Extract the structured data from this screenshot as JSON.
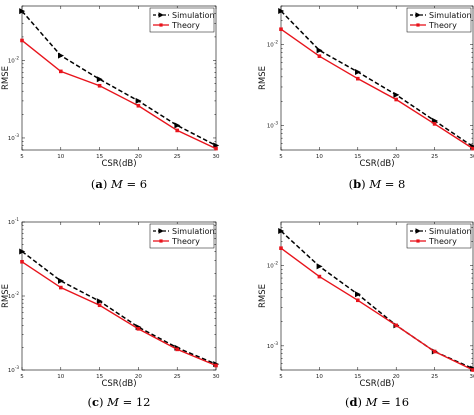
{
  "figure": {
    "panels_count": 4
  },
  "chart_data": [
    {
      "type": "line",
      "panel_label": "a",
      "caption_param": "M",
      "caption_value": "6",
      "xlabel": "CSR(dB)",
      "ylabel": "RMSE",
      "x_scale": "linear",
      "y_scale": "log",
      "xlim": [
        5,
        30
      ],
      "ylim": [
        0.0007,
        0.05
      ],
      "x": [
        5,
        10,
        15,
        20,
        25,
        30
      ],
      "x_tick_labels": [
        "5",
        "10",
        "15",
        "20",
        "25",
        "30"
      ],
      "y_tick_labels": [
        {
          "value": 0.01,
          "base": "10",
          "exp": "-2"
        },
        {
          "value": 0.001,
          "base": "10",
          "exp": "-3"
        }
      ],
      "grid": false,
      "legend_position": "top-right",
      "series": [
        {
          "name": "Simulation",
          "values": [
            0.043,
            0.0115,
            0.0057,
            0.003,
            0.00145,
            0.0008
          ],
          "color": "#000000",
          "style": "dashed",
          "marker": "triangle-right"
        },
        {
          "name": "Theory",
          "values": [
            0.018,
            0.0072,
            0.0047,
            0.0026,
            0.00125,
            0.00073
          ],
          "color": "#e8141c",
          "style": "solid",
          "marker": "square"
        }
      ]
    },
    {
      "type": "line",
      "panel_label": "b",
      "caption_param": "M",
      "caption_value": "8",
      "xlabel": "CSR(dB)",
      "ylabel": "RMSE",
      "x_scale": "linear",
      "y_scale": "log",
      "xlim": [
        5,
        30
      ],
      "ylim": [
        0.0005,
        0.03
      ],
      "x": [
        5,
        10,
        15,
        20,
        25,
        30
      ],
      "x_tick_labels": [
        "5",
        "10",
        "15",
        "20",
        "25",
        "30"
      ],
      "y_tick_labels": [
        {
          "value": 0.01,
          "base": "10",
          "exp": "-2"
        },
        {
          "value": 0.001,
          "base": "10",
          "exp": "-3"
        }
      ],
      "grid": false,
      "legend_position": "top-right",
      "series": [
        {
          "name": "Simulation",
          "values": [
            0.026,
            0.0085,
            0.0046,
            0.0024,
            0.00115,
            0.00055
          ],
          "color": "#000000",
          "style": "dashed",
          "marker": "triangle-right"
        },
        {
          "name": "Theory",
          "values": [
            0.0155,
            0.0072,
            0.0038,
            0.0021,
            0.00105,
            0.00052
          ],
          "color": "#e8141c",
          "style": "solid",
          "marker": "square"
        }
      ]
    },
    {
      "type": "line",
      "panel_label": "c",
      "caption_param": "M",
      "caption_value": "12",
      "xlabel": "CSR(dB)",
      "ylabel": "RMSE",
      "x_scale": "linear",
      "y_scale": "log",
      "xlim": [
        5,
        30
      ],
      "ylim": [
        0.001,
        0.1
      ],
      "x": [
        5,
        10,
        15,
        20,
        25,
        30
      ],
      "x_tick_labels": [
        "5",
        "10",
        "15",
        "20",
        "25",
        "30"
      ],
      "y_tick_labels": [
        {
          "value": 0.1,
          "base": "10",
          "exp": "-1"
        },
        {
          "value": 0.01,
          "base": "10",
          "exp": "-2"
        },
        {
          "value": 0.001,
          "base": "10",
          "exp": "-3"
        }
      ],
      "grid": false,
      "legend_position": "top-right",
      "series": [
        {
          "name": "Simulation",
          "values": [
            0.04,
            0.016,
            0.0085,
            0.0038,
            0.002,
            0.0012
          ],
          "color": "#000000",
          "style": "dashed",
          "marker": "triangle-right"
        },
        {
          "name": "Theory",
          "values": [
            0.029,
            0.013,
            0.0075,
            0.0036,
            0.0019,
            0.00115
          ],
          "color": "#e8141c",
          "style": "solid",
          "marker": "square"
        }
      ]
    },
    {
      "type": "line",
      "panel_label": "d",
      "caption_param": "M",
      "caption_value": "16",
      "xlabel": "CSR(dB)",
      "ylabel": "RMSE",
      "x_scale": "linear",
      "y_scale": "log",
      "xlim": [
        5,
        30
      ],
      "ylim": [
        0.0005,
        0.035
      ],
      "x": [
        5,
        10,
        15,
        20,
        25,
        30
      ],
      "x_tick_labels": [
        "5",
        "10",
        "15",
        "20",
        "25",
        "30"
      ],
      "y_tick_labels": [
        {
          "value": 0.01,
          "base": "10",
          "exp": "-2"
        },
        {
          "value": 0.001,
          "base": "10",
          "exp": "-3"
        }
      ],
      "grid": false,
      "legend_position": "top-right",
      "series": [
        {
          "name": "Simulation",
          "values": [
            0.027,
            0.0098,
            0.0044,
            0.0018,
            0.00085,
            0.00052
          ],
          "color": "#000000",
          "style": "dashed",
          "marker": "triangle-right"
        },
        {
          "name": "Theory",
          "values": [
            0.0165,
            0.0073,
            0.0037,
            0.0018,
            0.00085,
            0.0005
          ],
          "color": "#e8141c",
          "style": "solid",
          "marker": "square"
        }
      ]
    }
  ]
}
